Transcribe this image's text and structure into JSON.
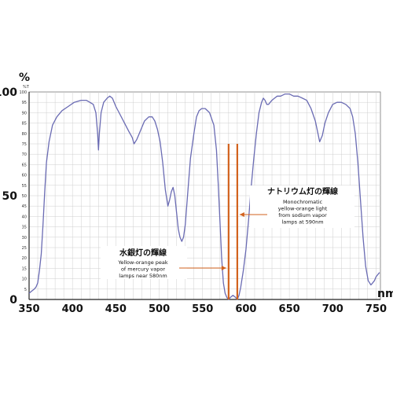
{
  "chart_data": {
    "type": "line",
    "title": "",
    "xlabel": "",
    "ylabel": "",
    "x_unit": "nm",
    "y_unit": "%",
    "y_unit_small": "%T",
    "xlim": [
      350,
      755
    ],
    "ylim": [
      0,
      100
    ],
    "x_ticks": [
      "350",
      "400",
      "450",
      "500",
      "550",
      "600",
      "650",
      "700",
      "750"
    ],
    "y_ticks_major": [
      "0",
      "50",
      "100"
    ],
    "y_ticks_minor": [
      "5",
      "10",
      "15",
      "20",
      "25",
      "30",
      "35",
      "40",
      "45",
      "50",
      "55",
      "60",
      "65",
      "70",
      "75",
      "80",
      "85",
      "90",
      "95",
      "100"
    ],
    "series": [
      {
        "color": "#6a6bb3",
        "x": [
          350,
          353,
          356,
          358,
          360,
          362,
          364,
          366,
          368,
          370,
          373,
          377,
          382,
          388,
          395,
          402,
          410,
          416,
          420,
          424,
          427,
          429,
          430,
          431,
          433,
          436,
          440,
          443,
          446,
          450,
          455,
          460,
          465,
          469,
          471,
          474,
          478,
          483,
          488,
          492,
          495,
          498,
          501,
          504,
          507,
          510,
          512,
          514,
          516,
          518,
          520,
          522,
          524,
          526,
          528,
          530,
          533,
          536,
          540,
          543,
          546,
          549,
          553,
          558,
          563,
          566,
          568,
          570,
          572,
          574,
          576,
          578,
          580,
          582,
          585,
          588,
          590,
          592,
          594,
          597,
          600,
          603,
          606,
          609,
          612,
          615,
          618,
          620,
          622,
          624,
          626,
          628,
          630,
          633,
          636,
          640,
          645,
          650,
          655,
          660,
          665,
          670,
          675,
          680,
          683,
          685,
          688,
          691,
          695,
          700,
          705,
          710,
          715,
          720,
          723,
          726,
          729,
          732,
          735,
          738,
          741,
          744,
          746,
          748,
          750,
          752,
          754
        ],
        "y": [
          3,
          4,
          5,
          6,
          8,
          14,
          22,
          36,
          52,
          66,
          76,
          84,
          88,
          91,
          93,
          95,
          96,
          96,
          95,
          94,
          90,
          80,
          72,
          80,
          90,
          95,
          97,
          98,
          97,
          93,
          89,
          85,
          81,
          78,
          75,
          77,
          81,
          86,
          88,
          88,
          86,
          82,
          76,
          66,
          53,
          45,
          48,
          52,
          54,
          50,
          42,
          34,
          30,
          28,
          30,
          36,
          52,
          68,
          80,
          88,
          91,
          92,
          92,
          90,
          84,
          72,
          56,
          38,
          20,
          8,
          3,
          1,
          0,
          1,
          2,
          1,
          0,
          2,
          6,
          14,
          24,
          38,
          54,
          68,
          80,
          90,
          95,
          97,
          96,
          94,
          94,
          95,
          96,
          97,
          98,
          98,
          99,
          99,
          98,
          98,
          97,
          96,
          92,
          86,
          80,
          76,
          79,
          85,
          90,
          94,
          95,
          95,
          94,
          92,
          88,
          80,
          66,
          48,
          30,
          16,
          9,
          7,
          8,
          9,
          11,
          12,
          13
        ]
      }
    ],
    "markers": [
      {
        "color": "#d2621e",
        "x": 580
      },
      {
        "color": "#d2621e",
        "x": 590
      }
    ],
    "annotations": [
      {
        "id": "sodium",
        "title": "ナトリウム灯の輝線",
        "lines": [
          "Monochromatic",
          "yellow-orange light",
          "from sodium vapor",
          "lamps at 590nm"
        ],
        "arrow_to_x": 590
      },
      {
        "id": "mercury",
        "title": "水銀灯の輝線",
        "lines": [
          "Yellow-orange peak",
          "of mercury vapor",
          "lamps near 580nm"
        ],
        "arrow_to_x": 580
      }
    ],
    "grid": true
  }
}
